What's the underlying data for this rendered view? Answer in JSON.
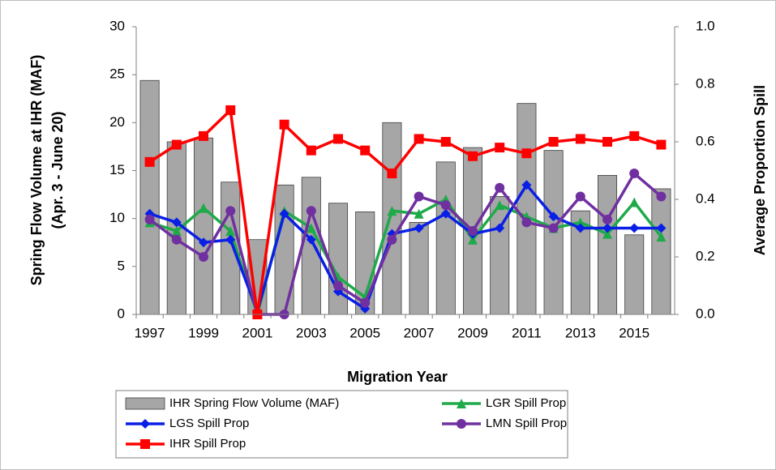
{
  "chart_data": {
    "type": "combo",
    "xlabel": "Migration Year",
    "ylabel": [
      "Spring Flow Volume at IHR (MAF)",
      "(Apr. 3 - June 20)"
    ],
    "y2label": "Average Proportion Spill",
    "categories": [
      "1997",
      null,
      "1999",
      null,
      "2001",
      null,
      "2003",
      null,
      "2005",
      null,
      "2007",
      null,
      "2009",
      null,
      "2011",
      null,
      "2013",
      null,
      "2015",
      null
    ],
    "ylim": [
      0,
      30
    ],
    "yticks": [
      0,
      5,
      10,
      15,
      20,
      25,
      30
    ],
    "y2lim": [
      0,
      1
    ],
    "y2ticks": [
      {
        "value": 0,
        "label": "0.0"
      },
      {
        "value": 0.2,
        "label": "0.2"
      },
      {
        "value": 0.4,
        "label": "0.4"
      },
      {
        "value": 0.6,
        "label": "0.6"
      },
      {
        "value": 0.8,
        "label": "0.8"
      },
      {
        "value": 1,
        "label": "1.0"
      }
    ],
    "series": [
      {
        "name": "IHR Spring Flow Volume (MAF)",
        "type": "bar",
        "color": "#a6a6a6",
        "values": [
          24.4,
          18.0,
          18.4,
          13.8,
          7.8,
          13.5,
          14.3,
          11.6,
          10.7,
          20.0,
          9.6,
          15.9,
          17.4,
          12.3,
          22.0,
          17.1,
          10.8,
          14.5,
          8.3,
          13.1
        ]
      },
      {
        "name": "LGR Spill Prop",
        "type": "line",
        "marker": "triangle",
        "axis": "y2",
        "color": "#1faa4a",
        "values": [
          0.32,
          0.29,
          0.37,
          0.29,
          0.0,
          0.36,
          0.3,
          0.13,
          0.06,
          0.36,
          0.35,
          0.4,
          0.26,
          0.38,
          0.34,
          0.3,
          0.32,
          0.28,
          0.39,
          0.27
        ]
      },
      {
        "name": "LGS Spill Prop",
        "type": "line",
        "marker": "diamond",
        "axis": "y2",
        "color": "#0a1fe6",
        "values": [
          0.35,
          0.32,
          0.25,
          0.26,
          0.01,
          0.35,
          0.26,
          0.08,
          0.02,
          0.28,
          0.3,
          0.35,
          0.28,
          0.3,
          0.45,
          0.34,
          0.3,
          0.3,
          0.3,
          0.3
        ]
      },
      {
        "name": "LMN Spill Prop",
        "type": "line",
        "marker": "circle",
        "axis": "y2",
        "color": "#7030a0",
        "values": [
          0.33,
          0.26,
          0.2,
          0.36,
          0.0,
          0.0,
          0.36,
          0.1,
          0.04,
          0.26,
          0.41,
          0.38,
          0.29,
          0.44,
          0.32,
          0.3,
          0.41,
          0.33,
          0.49,
          0.41
        ]
      },
      {
        "name": "IHR Spill Prop",
        "type": "line",
        "marker": "square",
        "axis": "y2",
        "color": "#ff0000",
        "values": [
          0.53,
          0.59,
          0.62,
          0.71,
          0.0,
          0.66,
          0.57,
          0.61,
          0.57,
          0.49,
          0.61,
          0.6,
          0.55,
          0.58,
          0.56,
          0.6,
          0.61,
          0.6,
          0.62,
          0.59
        ]
      }
    ]
  }
}
